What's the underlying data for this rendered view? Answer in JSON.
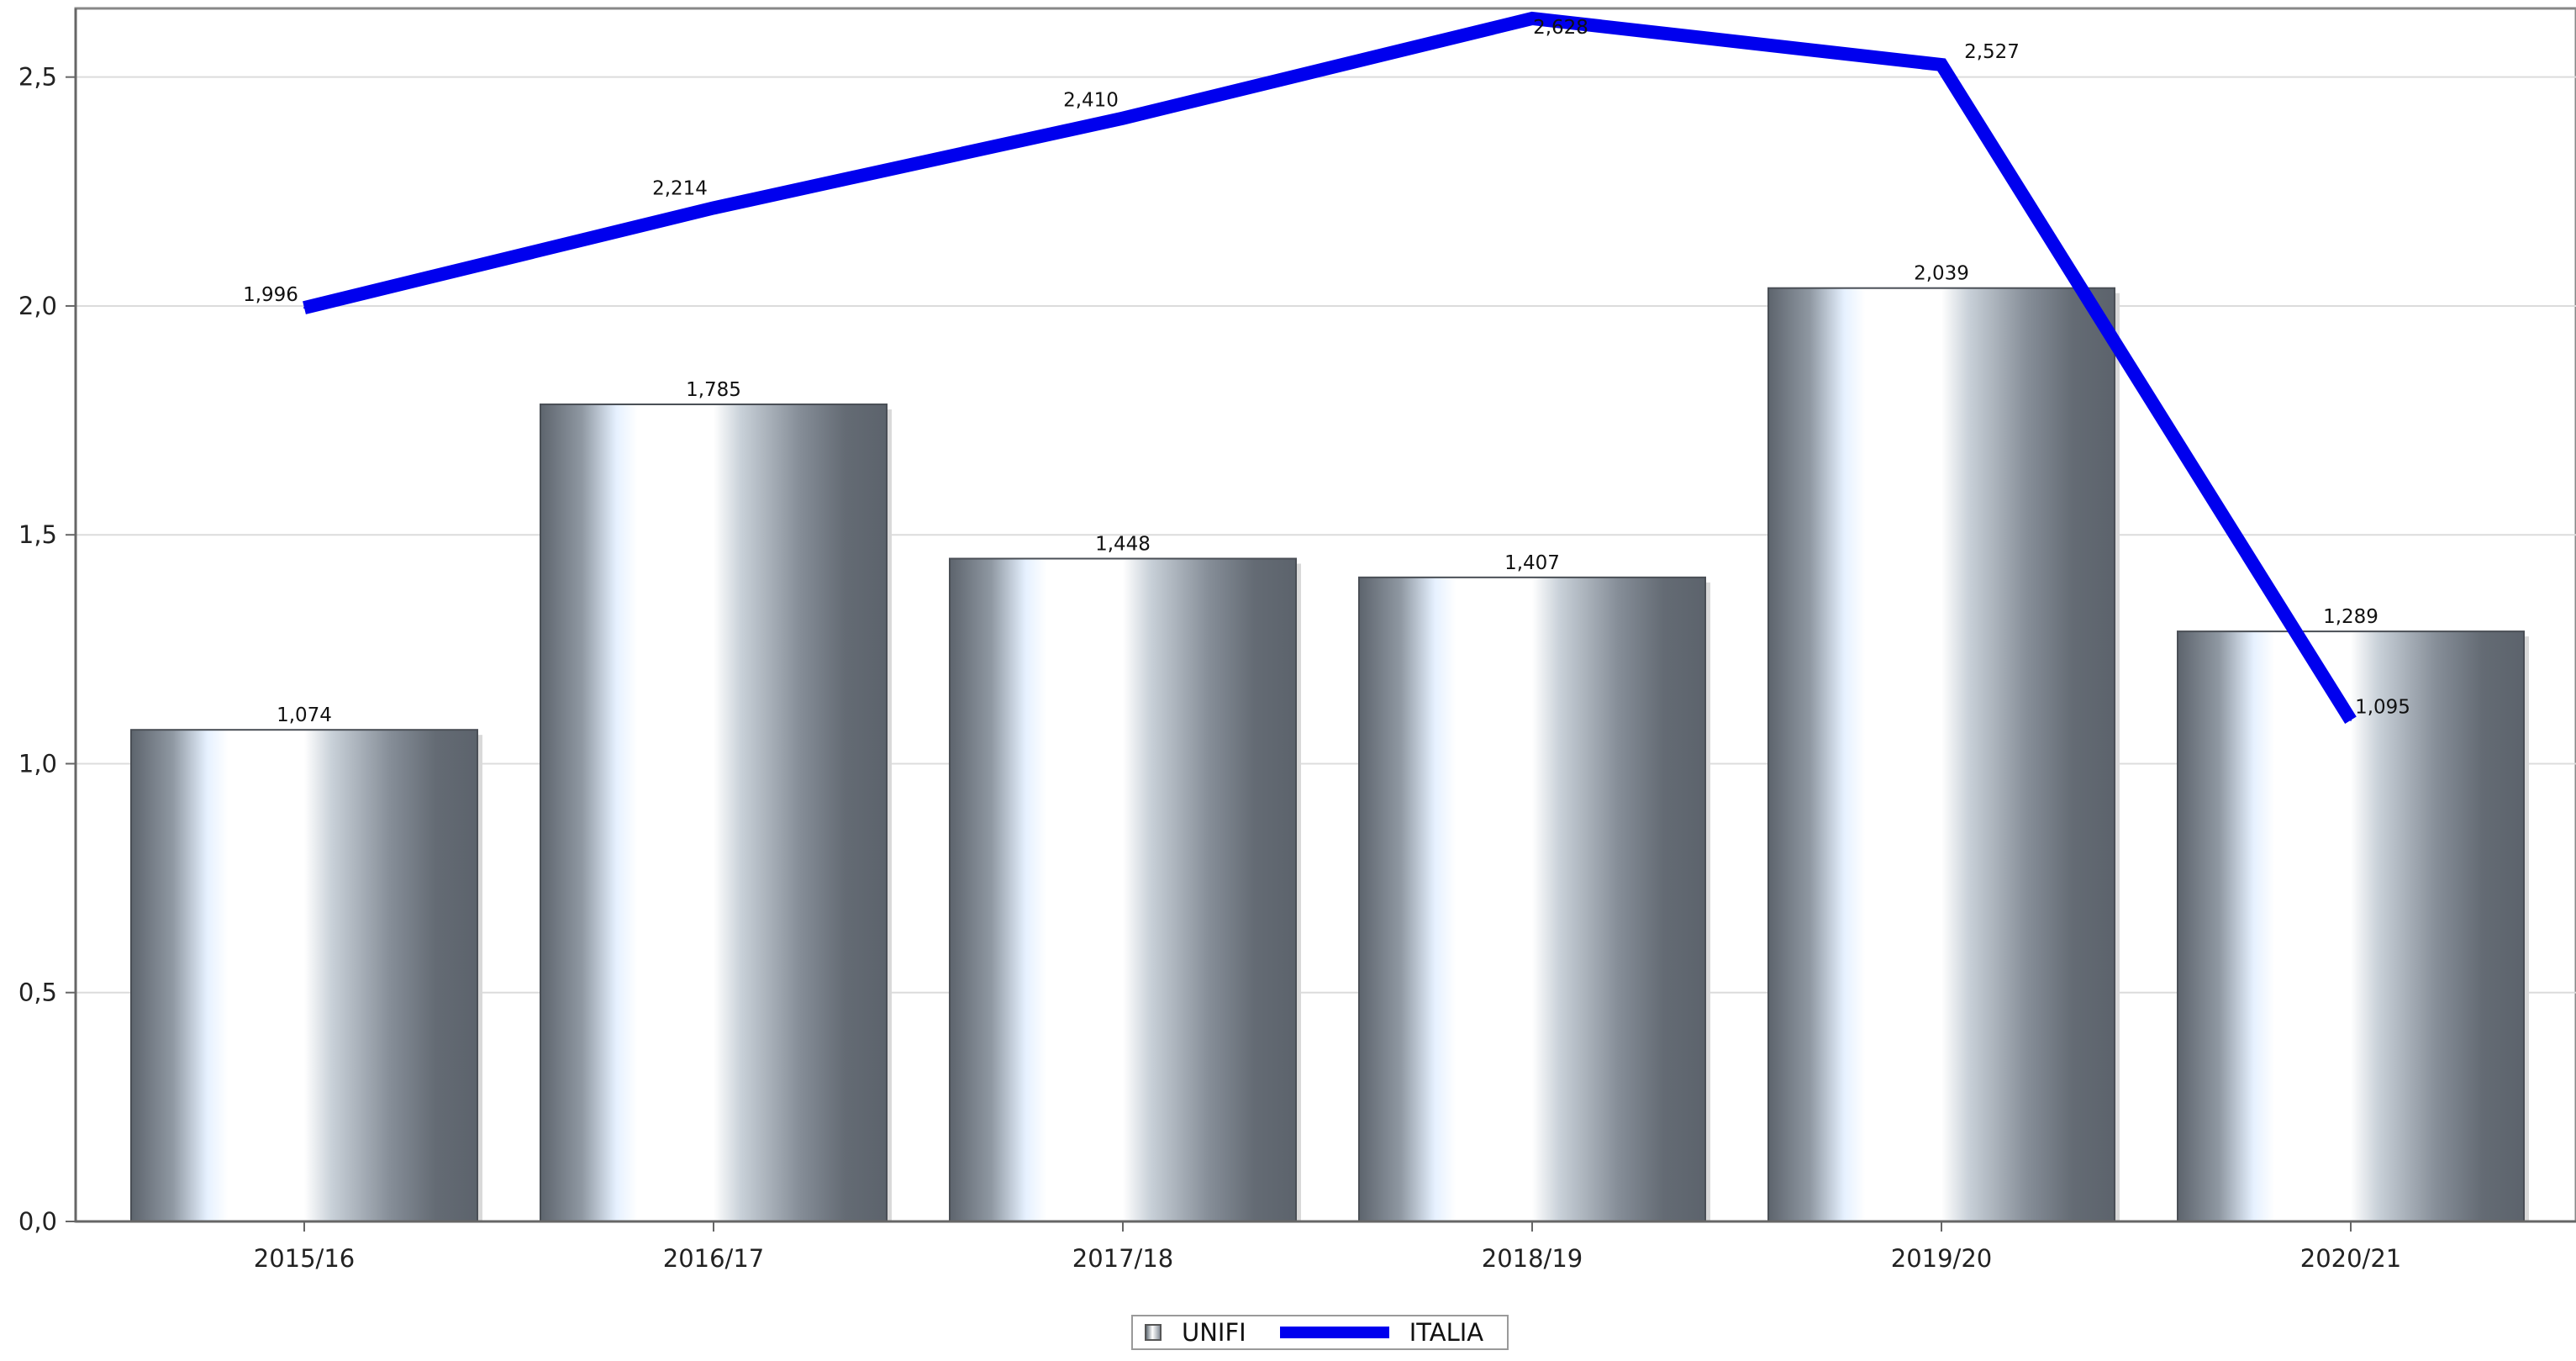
{
  "chart_data": {
    "type": "bar",
    "categories": [
      "2015/16",
      "2016/17",
      "2017/18",
      "2018/19",
      "2019/20",
      "2020/21"
    ],
    "series": [
      {
        "name": "UNIFI",
        "kind": "bar",
        "values": [
          1.074,
          1.785,
          1.448,
          1.407,
          2.039,
          1.289
        ],
        "labels": [
          "1,074",
          "1,785",
          "1,448",
          "1,407",
          "2,039",
          "1,289"
        ]
      },
      {
        "name": "ITALIA",
        "kind": "line",
        "values": [
          1.996,
          2.214,
          2.41,
          2.628,
          2.527,
          1.095
        ],
        "labels": [
          "1,996",
          "2,214",
          "2,410",
          "2,628",
          "2,527",
          "1,095"
        ],
        "color": "#0000ee"
      }
    ],
    "ylim": [
      0,
      2.65
    ],
    "yticks": [
      0,
      0.5,
      1.0,
      1.5,
      2.0,
      2.5
    ],
    "ytick_labels": [
      "0,0",
      "0,5",
      "1,0",
      "1,5",
      "2,0",
      "2,5"
    ],
    "grid": true,
    "legend_position": "bottom-center",
    "title": "",
    "xlabel": "",
    "ylabel": ""
  },
  "legend": {
    "unifi_label": "UNIFI",
    "italia_label": "ITALIA"
  }
}
